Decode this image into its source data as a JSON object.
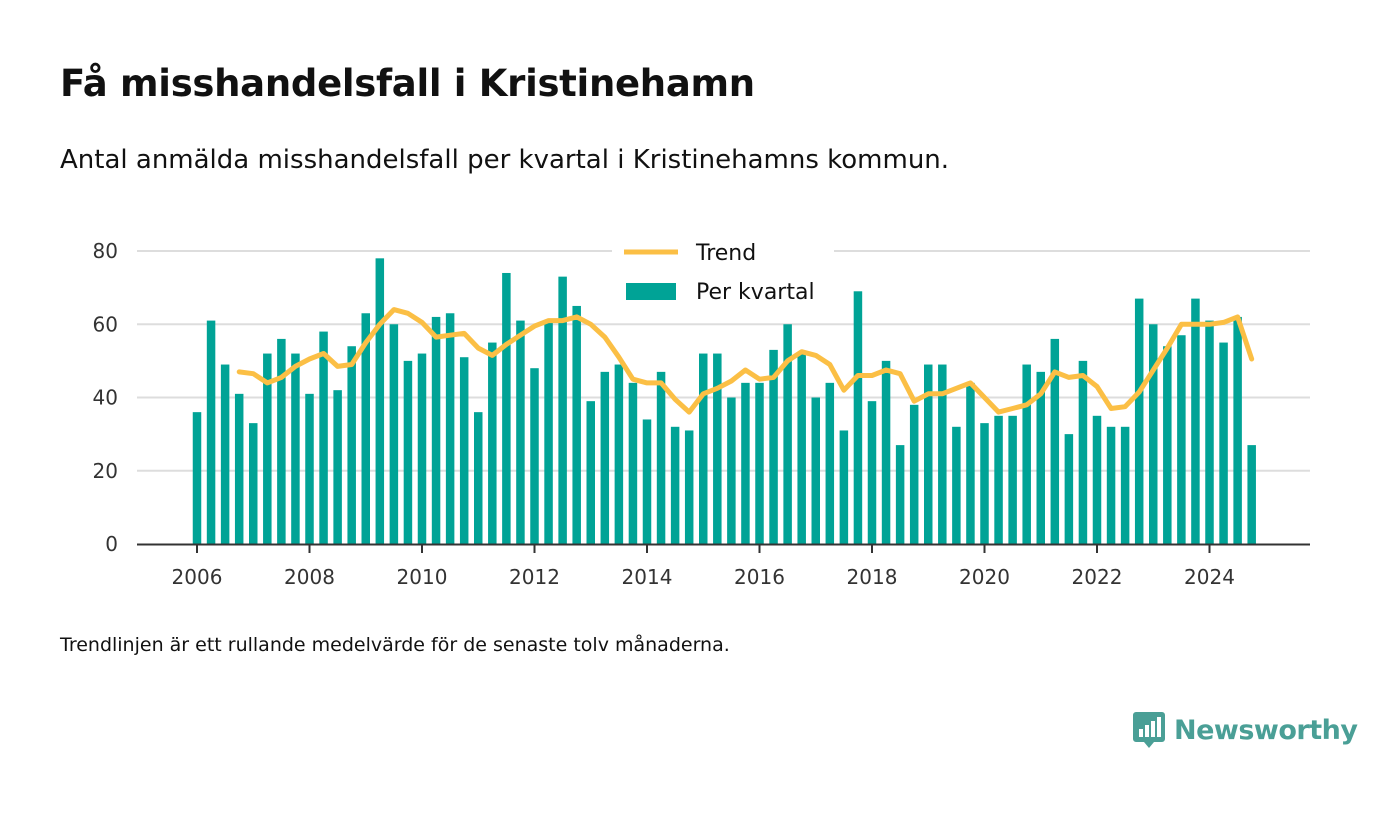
{
  "header": {
    "title": "Få misshandelsfall i Kristinehamn",
    "subtitle": "Antal anmälda misshandelsfall per kvartal i Kristinehamns kommun."
  },
  "footnote": "Trendlinjen är ett rullande medelvärde för de senaste tolv månaderna.",
  "brand": {
    "name": "Newsworthy",
    "icon": "newsworthy-logo-icon",
    "color": "#4a9f96"
  },
  "colors": {
    "bars": "#00a396",
    "trend": "#fbbf45",
    "grid": "#dddddd",
    "axis": "#333333"
  },
  "chart_data": {
    "type": "bar",
    "title": "Få misshandelsfall i Kristinehamn",
    "xlabel": "",
    "ylabel": "",
    "ylim": [
      0,
      80
    ],
    "yticks": [
      0,
      20,
      40,
      60,
      80
    ],
    "xticks": [
      "2006",
      "2008",
      "2010",
      "2012",
      "2014",
      "2016",
      "2018",
      "2020",
      "2022",
      "2024"
    ],
    "grid": true,
    "legend_position": "top-center",
    "start": "2006 Q1",
    "series": [
      {
        "name": "Per kvartal",
        "kind": "bar",
        "values": [
          36,
          61,
          49,
          41,
          33,
          52,
          56,
          52,
          41,
          58,
          42,
          54,
          63,
          78,
          60,
          50,
          52,
          62,
          63,
          51,
          36,
          55,
          74,
          61,
          48,
          61,
          73,
          65,
          39,
          47,
          49,
          44,
          34,
          47,
          32,
          31,
          52,
          52,
          40,
          44,
          44,
          53,
          60,
          52,
          40,
          44,
          31,
          69,
          39,
          50,
          27,
          38,
          49,
          49,
          32,
          44,
          33,
          35,
          35,
          49,
          47,
          56,
          30,
          50,
          35,
          32,
          32,
          67,
          60,
          54,
          57,
          67,
          61,
          55,
          62,
          27
        ]
      },
      {
        "name": "Trend",
        "kind": "line",
        "values": [
          null,
          null,
          null,
          47,
          46.5,
          44,
          45.5,
          48.5,
          50.5,
          52,
          48.5,
          49,
          55,
          60,
          64,
          63,
          60.5,
          56.5,
          57,
          57.5,
          53.5,
          51.5,
          54.5,
          57,
          59.5,
          61,
          61,
          62,
          60,
          56.5,
          51,
          45,
          44,
          44,
          39.5,
          36,
          41,
          42.5,
          44.5,
          47.5,
          45,
          45.5,
          50,
          52.5,
          51.5,
          49,
          42,
          46,
          46,
          47.5,
          46.5,
          39,
          41,
          41,
          42.5,
          44,
          40,
          36,
          37,
          38,
          41,
          47,
          45.5,
          46,
          43,
          37,
          37.5,
          41.5,
          47.5,
          53.5,
          60,
          60,
          60,
          60.5,
          62,
          50.5
        ]
      }
    ]
  }
}
